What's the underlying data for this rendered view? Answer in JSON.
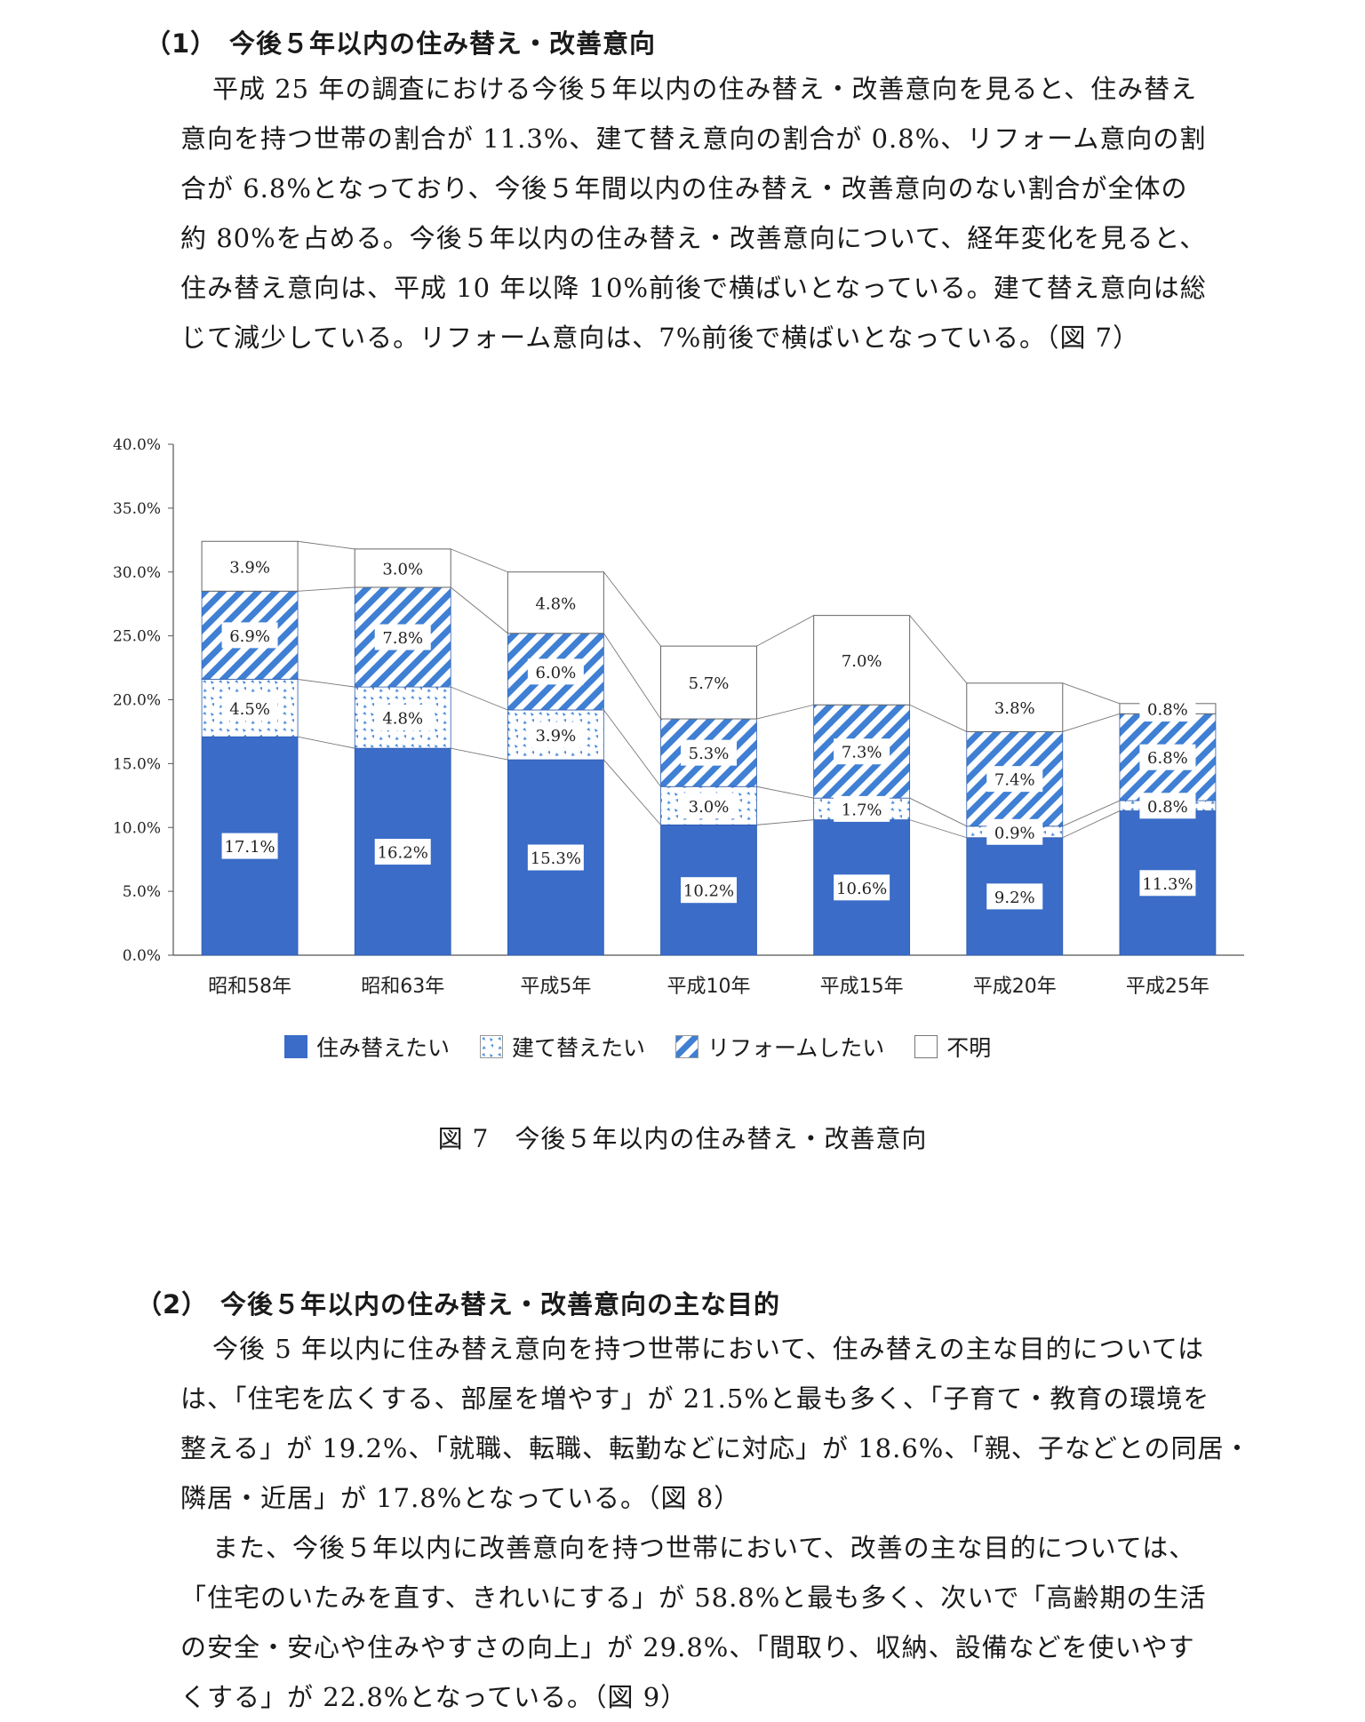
{
  "section1": {
    "number": "（1）",
    "title": "今後５年以内の住み替え・改善意向",
    "lines": [
      "平成 25 年の調査における今後５年以内の住み替え・改善意向を見ると、住み替え",
      "意向を持つ世帯の割合が 11.3%、建て替え意向の割合が 0.8%、リフォーム意向の割",
      "合が 6.8%となっており、今後５年間以内の住み替え・改善意向のない割合が全体の",
      "約 80%を占める。今後５年以内の住み替え・改善意向について、経年変化を見ると、",
      "住み替え意向は、平成 10 年以降 10%前後で横ばいとなっている。建て替え意向は総",
      "じて減少している。リフォーム意向は、7%前後で横ばいとなっている。（図 7）"
    ]
  },
  "figure": {
    "caption": "図 7　今後５年以内の住み替え・改善意向"
  },
  "legend": [
    {
      "label": "住み替えたい",
      "icon": "solid-blue"
    },
    {
      "label": "建て替えたい",
      "icon": "dotted-blue"
    },
    {
      "label": "リフォームしたい",
      "icon": "striped-blue"
    },
    {
      "label": "不明",
      "icon": "white"
    }
  ],
  "colors": {
    "solid": "#3a6cc8",
    "accent": "#4f8fd8",
    "border": "#2a2a2a"
  },
  "chart_data": {
    "type": "bar",
    "stacked": true,
    "categories": [
      "昭和58年",
      "昭和63年",
      "平成5年",
      "平成10年",
      "平成15年",
      "平成20年",
      "平成25年"
    ],
    "series": [
      {
        "name": "住み替えたい",
        "values": [
          17.1,
          16.2,
          15.3,
          10.2,
          10.6,
          9.2,
          11.3
        ],
        "labels": [
          "17.1%",
          "16.2%",
          "15.3%",
          "10.2%",
          "10.6%",
          "9.2%",
          "11.3%"
        ]
      },
      {
        "name": "建て替えたい",
        "values": [
          4.5,
          4.8,
          3.9,
          3.0,
          1.7,
          0.9,
          0.8
        ],
        "labels": [
          "4.5%",
          "4.8%",
          "3.9%",
          "3.0%",
          "1.7%",
          "0.9%",
          "0.8%"
        ]
      },
      {
        "name": "リフォームしたい",
        "values": [
          6.9,
          7.8,
          6.0,
          5.3,
          7.3,
          7.4,
          6.8
        ],
        "labels": [
          "6.9%",
          "7.8%",
          "6.0%",
          "5.3%",
          "7.3%",
          "7.4%",
          "6.8%"
        ]
      },
      {
        "name": "不明",
        "values": [
          3.9,
          3.0,
          4.8,
          5.7,
          7.0,
          3.8,
          0.8
        ],
        "labels": [
          "3.9%",
          "3.0%",
          "4.8%",
          "5.7%",
          "7.0%",
          "3.8%",
          "0.8%"
        ]
      }
    ],
    "yticks": [
      "0.0%",
      "5.0%",
      "10.0%",
      "15.0%",
      "20.0%",
      "25.0%",
      "30.0%",
      "35.0%",
      "40.0%"
    ],
    "ylim": [
      0,
      40
    ],
    "grid": false,
    "legend_position": "bottom"
  },
  "section2": {
    "number": "（2）",
    "title": "今後５年以内の住み替え・改善意向の主な目的",
    "para1": [
      "今後 5 年以内に住み替え意向を持つ世帯において、住み替えの主な目的については",
      "は、「住宅を広くする、部屋を増やす」が 21.5%と最も多く、「子育て・教育の環境を",
      "整える」が 19.2%、「就職、転職、転勤などに対応」が 18.6%、「親、子などとの同居・",
      "隣居・近居」が 17.8%となっている。（図 8）"
    ],
    "para2": [
      "また、今後５年以内に改善意向を持つ世帯において、改善の主な目的については、",
      "「住宅のいたみを直す、きれいにする」が 58.8%と最も多く、次いで「高齢期の生活",
      "の安全・安心や住みやすさの向上」が 29.8%、「間取り、収納、設備などを使いやす",
      "くする」が 22.8%となっている。（図 9）"
    ]
  }
}
